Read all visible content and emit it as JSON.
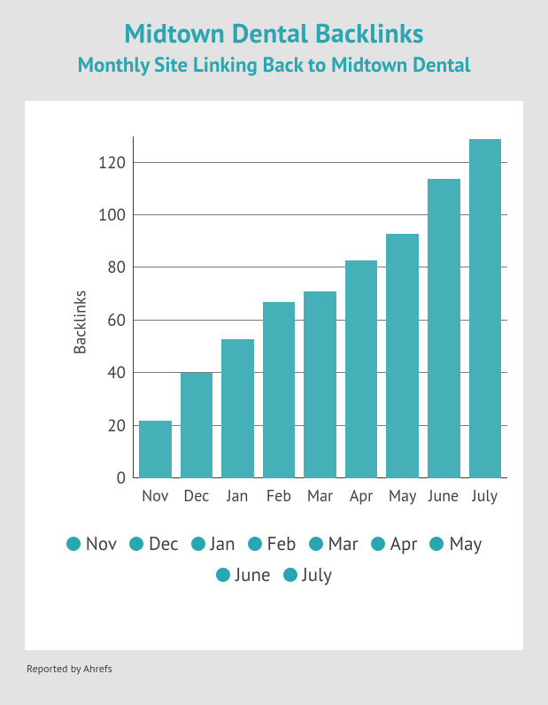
{
  "title": "Midtown Dental Backlinks",
  "subtitle": "Monthly Site Linking Back to Midtown Dental",
  "source": "Reported by Ahrefs",
  "chart": {
    "type": "bar",
    "ylabel": "Backlinks",
    "ylim_min": 0,
    "ylim_max": 130,
    "ytick_step": 20,
    "yticks": [
      0,
      20,
      40,
      60,
      80,
      100,
      120
    ],
    "categories": [
      "Nov",
      "Dec",
      "Jan",
      "Feb",
      "Mar",
      "Apr",
      "May",
      "June",
      "July"
    ],
    "values": [
      22,
      40,
      53,
      67,
      71,
      83,
      93,
      114,
      129
    ],
    "bar_color": "#46b0b9",
    "grid_color": "#7a7a7a",
    "axis_color": "#404040",
    "label_color": "#404040",
    "background_color": "#ffffff",
    "page_background_color": "#e3e3e3",
    "title_color": "#2aa6b0",
    "tick_fontsize": 19,
    "xtick_fontsize": 18,
    "ylabel_fontsize": 18,
    "title_fontsize": 30,
    "subtitle_fontsize": 23,
    "legend_fontsize": 21,
    "legend_dot_color": "#2aa6b0",
    "bar_width": 0.78
  }
}
